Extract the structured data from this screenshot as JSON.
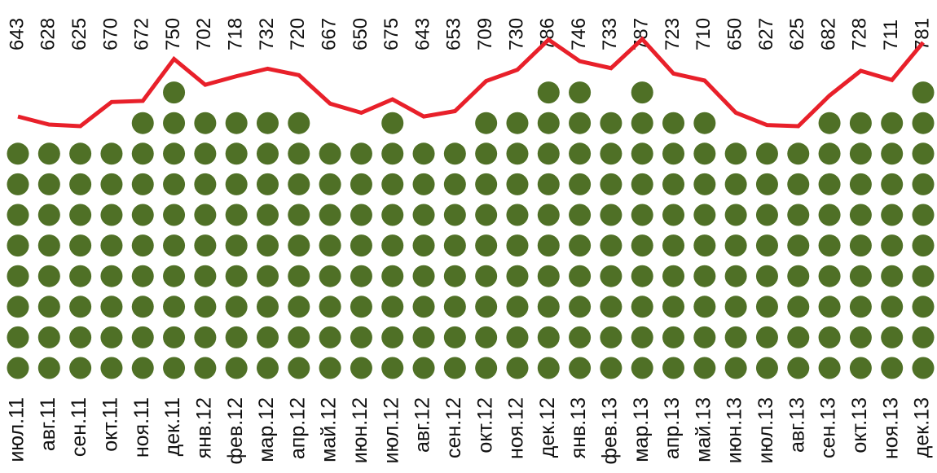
{
  "chart_data": {
    "type": "dotline",
    "categories": [
      "июл.11",
      "авг.11",
      "сен.11",
      "окт.11",
      "ноя.11",
      "дек.11",
      "янв.12",
      "фев.12",
      "мар.12",
      "апр.12",
      "май.12",
      "июн.12",
      "июл.12",
      "авг.12",
      "сен.12",
      "окт.12",
      "ноя.12",
      "дек.12",
      "янв.13",
      "фев.13",
      "мар.13",
      "апр.13",
      "май.13",
      "июн.13",
      "июл.13",
      "авг.13",
      "сен.13",
      "окт.13",
      "ноя.13",
      "дек.13"
    ],
    "values": [
      643,
      628,
      625,
      670,
      672,
      750,
      702,
      718,
      732,
      720,
      667,
      650,
      675,
      643,
      653,
      709,
      730,
      786,
      746,
      733,
      787,
      723,
      710,
      650,
      627,
      625,
      682,
      728,
      711,
      781
    ],
    "dot_color": "#4f7026",
    "line_color": "#e8202a"
  }
}
